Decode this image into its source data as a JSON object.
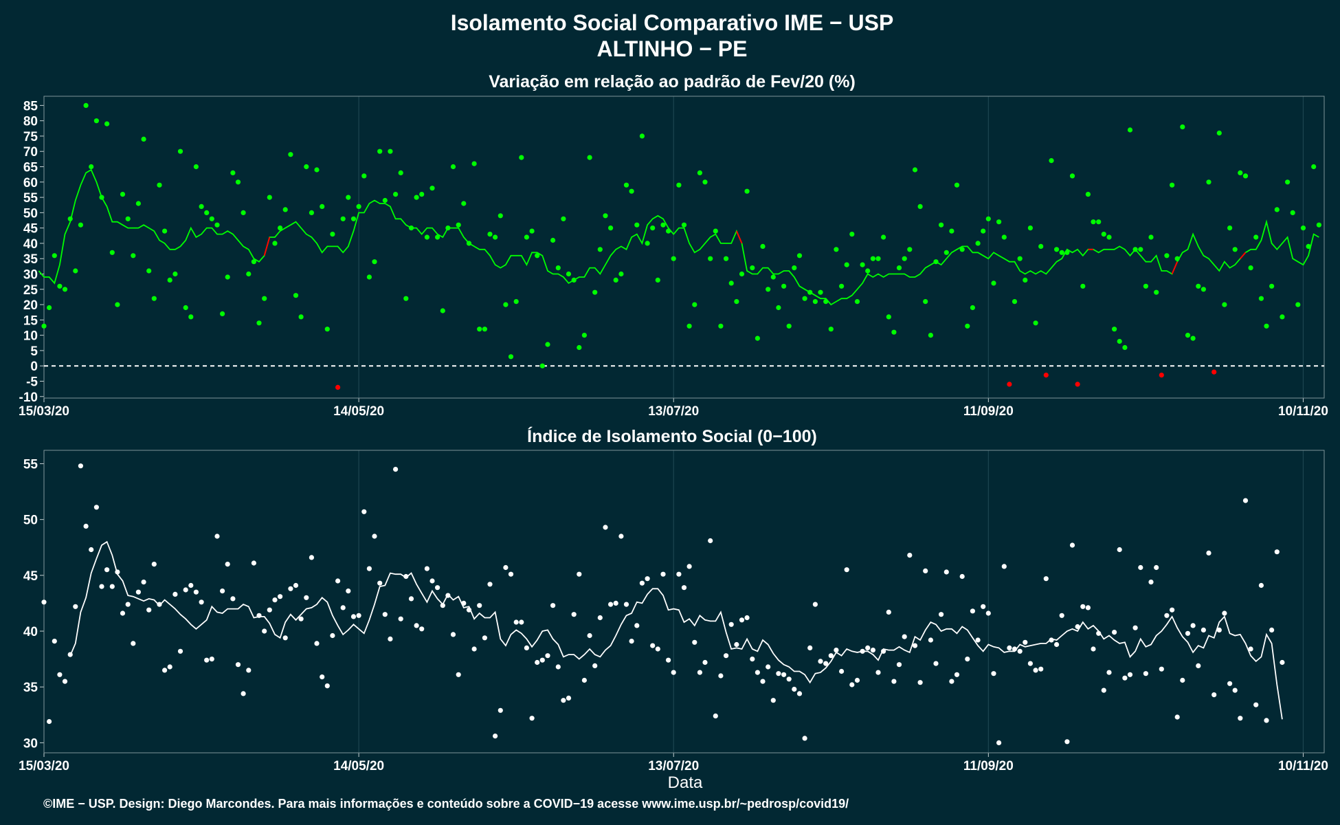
{
  "title": {
    "line1": "Isolamento Social Comparativo IME − USP",
    "line2": "ALTINHO − PE"
  },
  "credit": "©IME − USP. Design: Diego Marcondes. Para mais informações e conteúdo sobre a COVID−19 acesse www.ime.usp.br/~pedrosp/covid19/",
  "colors": {
    "background": "#022833",
    "positive_points": "#00ff00",
    "negative_points": "#ff0000",
    "index_points": "#ffffff",
    "grid": "#1d4550"
  },
  "chart_data": [
    {
      "type": "scatter",
      "title": "Variação em relação ao padrão de Fev/20 (%)",
      "xlabel": "",
      "ylabel": "",
      "x_start": "15/03/20",
      "x_end": "14/11/20",
      "x_ticks": [
        "15/03/20",
        "14/05/20",
        "13/07/20",
        "11/09/20",
        "10/11/20"
      ],
      "y_ticks": [
        -10,
        -5,
        0,
        5,
        10,
        15,
        20,
        25,
        30,
        35,
        40,
        45,
        50,
        55,
        60,
        65,
        70,
        75,
        80,
        85
      ],
      "ylim": [
        -10.5,
        88
      ],
      "reference_line": 0,
      "grid": true,
      "series": [
        {
          "kind": "points",
          "values": [
            13,
            19,
            36,
            26,
            25,
            48,
            31,
            46,
            85,
            65,
            80,
            55,
            79,
            37,
            20,
            56,
            48,
            36,
            53,
            74,
            31,
            22,
            59,
            44,
            28,
            30,
            70,
            19,
            16,
            65,
            52,
            50,
            48,
            46,
            17,
            29,
            63,
            60,
            50,
            30,
            34,
            14,
            22,
            55,
            40,
            45,
            51,
            69,
            23,
            16,
            65,
            50,
            64,
            52,
            12,
            43,
            -7,
            48,
            55,
            48,
            52,
            62,
            29,
            34,
            70,
            54,
            70,
            56,
            63,
            22,
            45,
            55,
            56,
            42,
            58,
            42,
            18,
            45,
            65,
            46,
            53,
            40,
            66,
            12,
            12,
            43,
            42,
            49,
            20,
            3,
            21,
            68,
            42,
            44,
            36,
            0,
            7,
            41,
            32,
            48,
            30,
            28,
            6,
            10,
            68,
            24,
            38,
            49,
            45,
            28,
            30,
            59,
            57,
            46,
            75,
            40,
            45,
            28,
            46,
            44,
            35,
            59,
            46,
            13,
            20,
            63,
            60,
            35,
            44,
            13,
            35,
            27,
            21,
            30,
            57,
            32,
            9,
            39,
            25,
            29,
            19,
            26,
            13,
            32,
            36,
            22,
            24,
            21,
            24,
            21,
            12,
            38,
            26,
            33,
            43,
            21,
            33,
            31,
            35,
            35,
            42,
            16,
            11,
            32,
            35,
            38,
            64,
            52,
            21,
            10,
            34,
            46,
            37,
            44,
            59,
            38,
            13,
            19,
            40,
            44,
            48,
            27,
            47,
            42,
            -6,
            21,
            35,
            28,
            45,
            14,
            39,
            -3,
            67,
            38,
            37,
            37,
            62,
            -6,
            26,
            56,
            47,
            47,
            43,
            42,
            12,
            8,
            6,
            77,
            38,
            38,
            26,
            42,
            24,
            -3,
            36,
            59,
            35,
            78,
            10,
            9,
            26,
            25,
            60,
            -2,
            76,
            20,
            45,
            38,
            63,
            62,
            32,
            42,
            22,
            13,
            26,
            51,
            16,
            60,
            50,
            20,
            45,
            39,
            65,
            46
          ]
        },
        {
          "kind": "moving_average",
          "values": [
            31,
            29,
            29,
            27,
            33,
            43,
            47,
            54,
            59,
            63,
            64,
            60,
            55,
            52,
            47,
            47,
            46,
            45,
            45,
            45,
            46,
            45,
            44,
            41,
            40,
            38,
            38,
            39,
            41,
            45,
            42,
            43,
            45,
            45,
            43,
            43,
            44,
            43,
            41,
            39,
            38,
            35,
            34,
            36,
            42,
            42,
            44,
            45,
            46,
            47,
            45,
            43,
            42,
            40,
            37,
            39,
            39,
            39,
            37,
            39,
            44,
            50,
            50,
            53,
            54,
            53,
            53,
            52,
            48,
            48,
            46,
            45,
            45,
            43,
            45,
            45,
            43,
            42,
            45,
            45,
            45,
            42,
            40,
            39,
            38,
            38,
            36,
            33,
            32,
            33,
            36,
            36,
            36,
            33,
            37,
            37,
            36,
            31,
            30,
            30,
            29,
            27,
            28,
            29,
            29,
            32,
            32,
            30,
            33,
            36,
            38,
            39,
            38,
            42,
            43,
            40,
            46,
            48,
            49,
            48,
            45,
            43,
            45,
            45,
            40,
            37,
            38,
            40,
            42,
            43,
            40,
            40,
            40,
            44,
            40,
            31,
            30,
            30,
            32,
            32,
            30,
            30,
            31,
            31,
            29,
            26,
            25,
            24,
            23,
            22,
            22,
            20,
            21,
            22,
            22,
            23,
            25,
            27,
            30,
            29,
            30,
            29,
            30,
            30,
            30,
            30,
            29,
            29,
            30,
            32,
            33,
            34,
            33,
            35,
            37,
            38,
            39,
            39,
            37,
            37,
            36,
            35,
            37,
            36,
            35,
            34,
            34,
            31,
            30,
            31,
            30,
            31,
            30,
            32,
            34,
            35,
            38,
            37,
            38,
            36,
            38,
            38,
            37,
            38,
            38,
            38,
            39,
            38,
            36,
            38,
            36,
            34,
            34,
            36,
            31,
            31,
            30,
            34,
            37,
            38,
            43,
            39,
            36,
            35,
            33,
            31,
            34,
            32,
            33,
            35,
            37,
            38,
            38,
            41,
            47,
            40,
            38,
            40,
            42,
            35,
            34,
            33,
            36,
            43,
            42
          ],
          "negative_segments": [
            [
              43,
              44
            ],
            [
              133,
              134
            ],
            [
              200,
              201
            ],
            [
              216,
              217
            ],
            [
              229,
              230
            ]
          ]
        }
      ]
    },
    {
      "type": "scatter",
      "title": "Índice de Isolamento Social (0−100)",
      "xlabel": "Data",
      "ylabel": "",
      "x_start": "15/03/20",
      "x_end": "14/11/20",
      "x_ticks": [
        "15/03/20",
        "14/05/20",
        "13/07/20",
        "11/09/20",
        "10/11/20"
      ],
      "y_ticks": [
        30,
        35,
        40,
        45,
        50,
        55
      ],
      "ylim": [
        29.1,
        56.2
      ],
      "grid": true,
      "series": [
        {
          "kind": "points",
          "values": [
            42.6,
            31.9,
            39.1,
            36.1,
            35.5,
            37.9,
            42.2,
            54.8,
            49.4,
            47.3,
            51.1,
            44.0,
            45.5,
            44.0,
            45.3,
            41.6,
            42.4,
            38.9,
            43.5,
            44.4,
            41.9,
            46.0,
            42.4,
            36.5,
            36.8,
            43.3,
            38.2,
            43.7,
            44.1,
            43.5,
            42.6,
            37.4,
            37.5,
            48.5,
            43.6,
            46.0,
            42.9,
            37.0,
            34.4,
            36.5,
            46.1,
            41.4,
            40.0,
            41.9,
            42.8,
            43.1,
            39.4,
            43.8,
            44.1,
            41.1,
            43.0,
            46.6,
            38.9,
            35.9,
            35.1,
            39.6,
            44.5,
            42.1,
            43.6,
            41.3,
            41.4,
            50.7,
            45.6,
            48.5,
            44.3,
            41.5,
            39.3,
            54.5,
            41.1,
            44.9,
            42.9,
            40.5,
            40.2,
            45.6,
            44.5,
            43.9,
            42.3,
            43.2,
            39.7,
            36.1,
            42.5,
            41.9,
            38.4,
            42.3,
            39.4,
            44.2,
            30.6,
            32.9,
            45.7,
            45.1,
            40.8,
            40.8,
            38.5,
            32.2,
            37.2,
            37.4,
            37.8,
            42.3,
            36.8,
            33.8,
            34.0,
            41.5,
            45.1,
            35.6,
            39.6,
            36.9,
            41.2,
            49.3,
            42.4,
            42.5,
            48.5,
            42.4,
            39.1,
            40.5,
            44.3,
            44.7,
            38.7,
            38.4,
            45.1,
            37.4,
            36.3,
            45.1,
            43.9,
            45.8,
            39.0,
            36.3,
            37.2,
            48.1,
            32.4,
            36.0,
            37.8,
            40.6,
            38.8,
            41.0,
            41.2,
            37.5,
            36.3,
            35.5,
            36.8,
            33.8,
            36.2,
            36.1,
            35.7,
            34.8,
            34.4,
            30.4,
            38.5,
            42.4,
            37.3,
            37.1,
            37.8,
            38.3,
            36.4,
            45.5,
            35.2,
            35.6,
            38.2,
            38.5,
            38.3,
            36.3,
            38.2,
            41.7,
            35.5,
            37.0,
            39.5,
            46.8,
            38.7,
            35.4,
            45.4,
            39.2,
            37.1,
            41.5,
            45.3,
            35.5,
            36.1,
            44.9,
            37.5,
            41.8,
            39.2,
            42.2,
            41.6,
            36.2,
            30.0,
            45.8,
            38.5,
            38.4,
            38.2,
            39.0,
            37.1,
            36.5,
            36.6,
            44.7,
            39.2,
            38.8,
            41.4,
            30.1,
            47.7,
            40.4,
            42.2,
            42.1,
            38.4,
            39.8,
            34.7,
            36.3,
            39.9,
            47.3,
            35.8,
            36.1,
            40.3,
            45.7,
            36.2,
            44.4,
            45.7,
            36.6,
            41.4,
            41.9,
            32.3,
            35.6,
            39.8,
            40.5,
            36.9,
            40.1,
            47.0,
            34.3,
            40.1,
            41.6,
            35.3,
            34.7,
            32.2,
            51.7,
            38.4,
            33.4,
            44.1,
            32.0,
            40.1,
            47.1,
            37.2
          ]
        },
        {
          "kind": "moving_average",
          "values": [
            37.8,
            38.9,
            41.7,
            43.0,
            45.2,
            46.5,
            47.7,
            48.0,
            46.8,
            45.1,
            44.5,
            43.2,
            43.1,
            42.9,
            42.7,
            42.9,
            42.8,
            42.3,
            42.8,
            42.4,
            42.0,
            41.5,
            41.1,
            40.6,
            40.2,
            40.6,
            41.0,
            42.2,
            41.7,
            41.6,
            42.0,
            42.0,
            42.0,
            42.4,
            42.2,
            41.2,
            41.3,
            41.3,
            40.7,
            39.7,
            39.4,
            40.8,
            41.5,
            41.0,
            41.5,
            42.0,
            42.1,
            42.4,
            43.0,
            42.6,
            41.4,
            40.5,
            39.7,
            40.1,
            40.6,
            40.2,
            39.8,
            41.0,
            42.4,
            44.0,
            44.1,
            45.2,
            45.1,
            45.1,
            44.8,
            45.2,
            44.2,
            43.4,
            42.6,
            43.6,
            42.9,
            42.4,
            43.3,
            42.8,
            43.1,
            42.1,
            42.2,
            41.1,
            41.6,
            41.2,
            41.2,
            41.7,
            39.3,
            38.7,
            39.7,
            40.1,
            39.8,
            39.3,
            38.6,
            39.2,
            40.0,
            40.1,
            39.3,
            38.8,
            37.7,
            37.9,
            37.9,
            37.5,
            37.9,
            38.4,
            37.9,
            37.7,
            38.3,
            38.7,
            39.6,
            40.6,
            41.4,
            41.6,
            42.6,
            42.5,
            43.3,
            43.8,
            43.8,
            43.2,
            41.9,
            42.0,
            41.9,
            40.8,
            41.1,
            40.5,
            41.4,
            41.0,
            40.9,
            40.9,
            41.7,
            39.9,
            38.4,
            38.5,
            38.4,
            39.3,
            38.4,
            38.2,
            39.2,
            38.8,
            38.0,
            37.4,
            37.0,
            36.8,
            36.4,
            36.4,
            36.1,
            35.4,
            36.2,
            36.3,
            36.7,
            37.3,
            38.1,
            37.8,
            38.4,
            38.2,
            38.1,
            38.2,
            38.2,
            37.9,
            37.4,
            38.4,
            38.3,
            38.3,
            38.6,
            38.3,
            38.1,
            39.5,
            39.2,
            40.1,
            40.8,
            40.6,
            40.0,
            40.2,
            40.2,
            39.8,
            40.4,
            40.1,
            39.4,
            38.7,
            38.2,
            38.8,
            38.6,
            38.5,
            38.1,
            38.2,
            38.2,
            38.8,
            38.6,
            38.7,
            38.8,
            38.9,
            38.9,
            39.3,
            39.2,
            39.6,
            40.0,
            40.2,
            40.0,
            40.8,
            40.2,
            40.5,
            40.0,
            39.3,
            39.6,
            39.2,
            38.9,
            39.0,
            37.7,
            38.2,
            39.3,
            38.6,
            38.8,
            39.6,
            40.0,
            40.6,
            41.3,
            40.3,
            39.5,
            39.0,
            38.1,
            38.7,
            38.5,
            39.6,
            39.4,
            40.8,
            41.3,
            39.8,
            39.6,
            39.7,
            38.9,
            37.8,
            37.3,
            37.7,
            39.7,
            38.9,
            35.2,
            32.1
          ]
        }
      ]
    }
  ]
}
